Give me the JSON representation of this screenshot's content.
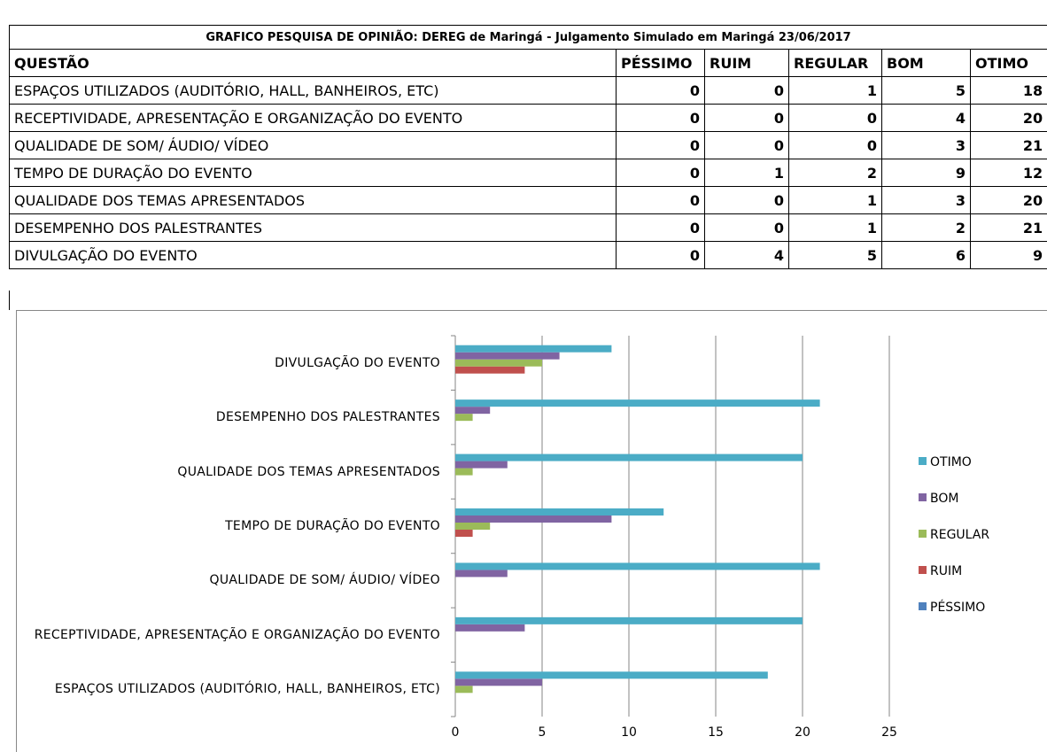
{
  "table": {
    "title": "GRAFICO PESQUISA DE OPINIÃO: DEREG de Maringá - Julgamento Simulado em Maringá 23/06/2017",
    "question_header": "QUESTÃO"
  },
  "chart_data": {
    "type": "barh",
    "categories": [
      "ESPAÇOS UTILIZADOS (AUDITÓRIO, HALL, BANHEIROS, ETC)",
      "RECEPTIVIDADE, APRESENTAÇÃO E ORGANIZAÇÃO DO EVENTO",
      "QUALIDADE DE SOM/ ÁUDIO/ VÍDEO",
      "TEMPO DE DURAÇÃO DO EVENTO",
      "QUALIDADE DOS TEMAS APRESENTADOS",
      "DESEMPENHO DOS PALESTRANTES",
      "DIVULGAÇÃO DO EVENTO"
    ],
    "series": [
      {
        "name": "PÉSSIMO",
        "color": "#4f81bd",
        "values": [
          0,
          0,
          0,
          0,
          0,
          0,
          0
        ]
      },
      {
        "name": "RUIM",
        "color": "#c0504d",
        "values": [
          0,
          0,
          0,
          1,
          0,
          0,
          4
        ]
      },
      {
        "name": "REGULAR",
        "color": "#9bbb59",
        "values": [
          1,
          0,
          0,
          2,
          1,
          1,
          5
        ]
      },
      {
        "name": "BOM",
        "color": "#8064a2",
        "values": [
          5,
          4,
          3,
          9,
          3,
          2,
          6
        ]
      },
      {
        "name": "OTIMO",
        "color": "#4bacc6",
        "values": [
          18,
          20,
          21,
          12,
          20,
          21,
          9
        ]
      }
    ],
    "xlim": [
      0,
      25
    ],
    "xticks": [
      0,
      5,
      10,
      15,
      20,
      25
    ],
    "grid": true,
    "legend": "right"
  }
}
